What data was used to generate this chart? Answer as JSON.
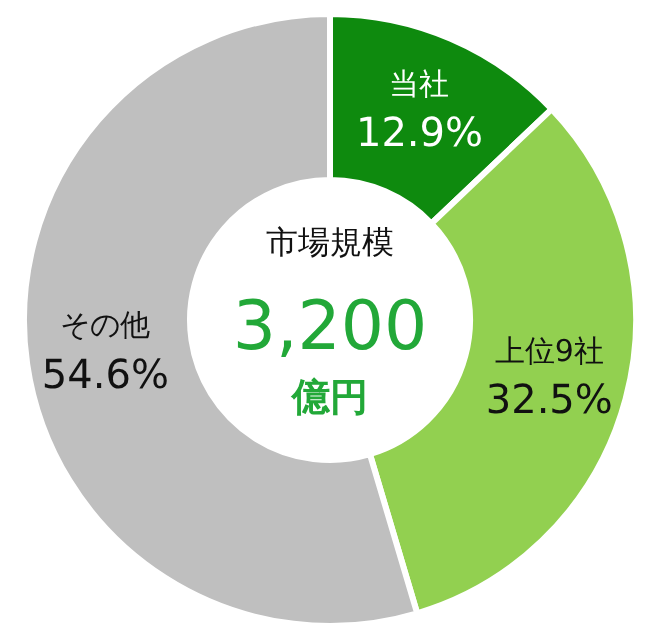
{
  "chart_data": {
    "type": "donut",
    "title": "市場規模",
    "annotations": [
      "3,200",
      "億円"
    ],
    "categories": [
      "当社",
      "上位9社",
      "その他"
    ],
    "values": [
      12.9,
      32.5,
      54.6
    ],
    "value_labels": [
      "12.9%",
      "32.5%",
      "54.6%"
    ],
    "colors": [
      "#0e8a0e",
      "#92d050",
      "#bfbfbf"
    ]
  }
}
